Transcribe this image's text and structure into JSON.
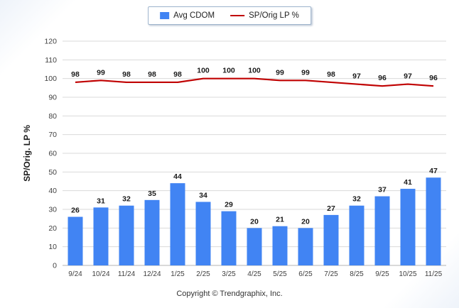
{
  "chart_data": {
    "type": "bar",
    "title": "",
    "categories": [
      "9/24",
      "10/24",
      "11/24",
      "12/24",
      "1/25",
      "2/25",
      "3/25",
      "4/25",
      "5/25",
      "6/25",
      "7/25",
      "8/25",
      "9/25",
      "10/25",
      "11/25"
    ],
    "series": [
      {
        "name": "Avg CDOM",
        "type": "bar",
        "color": "#4184f3",
        "values": [
          26,
          31,
          32,
          35,
          44,
          34,
          29,
          20,
          21,
          20,
          27,
          32,
          37,
          41,
          47
        ]
      },
      {
        "name": "SP/Orig LP %",
        "type": "line",
        "color": "#c00000",
        "values": [
          98,
          99,
          98,
          98,
          98,
          100,
          100,
          100,
          99,
          99,
          98,
          97,
          96,
          97,
          96
        ]
      }
    ],
    "xlabel": "",
    "ylabel": "SP/Orig. LP %",
    "ylim": [
      0,
      120
    ],
    "ytick_step": 10,
    "grid": true,
    "legend_position": "top",
    "colors": {
      "gridline": "#d9d9d9",
      "baseline": "#b3b3b3",
      "tick_label": "#404040",
      "value_label": "#1a1a1a",
      "axis_title": "#1a1a1a"
    }
  },
  "legend": {
    "bar_label": "Avg CDOM",
    "line_label": "SP/Orig LP %"
  },
  "footer": {
    "copyright": "Copyright © Trendgraphix, Inc."
  }
}
